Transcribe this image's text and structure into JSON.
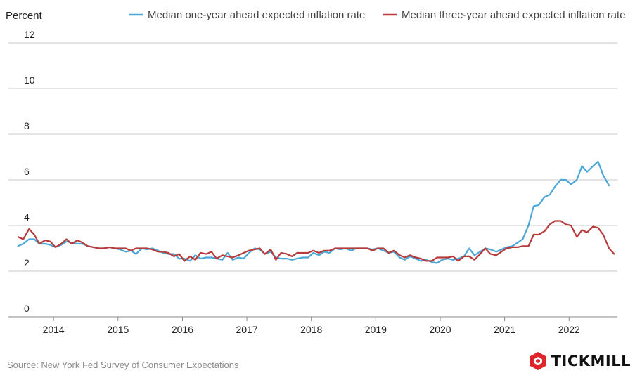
{
  "chart_data": {
    "type": "line",
    "ylabel": "Percent",
    "ylim": [
      0,
      12
    ],
    "yticks": [
      0,
      2,
      4,
      6,
      8,
      10,
      12
    ],
    "xlim": [
      2013.3,
      2022.75
    ],
    "xticks": [
      2014,
      2015,
      2016,
      2017,
      2018,
      2019,
      2020,
      2021,
      2022
    ],
    "xtick_labels": [
      "2014",
      "2015",
      "2016",
      "2017",
      "2018",
      "2019",
      "2020",
      "2021",
      "2022"
    ],
    "grid": "horizontal",
    "legend_position": "top",
    "series": [
      {
        "name": "Median one-year ahead expected inflation rate",
        "color": "#4aa8d8",
        "points": [
          [
            2013.45,
            3.1
          ],
          [
            2013.53,
            3.2
          ],
          [
            2013.62,
            3.4
          ],
          [
            2013.7,
            3.4
          ],
          [
            2013.78,
            3.2
          ],
          [
            2013.87,
            3.2
          ],
          [
            2013.95,
            3.15
          ],
          [
            2014.03,
            3.05
          ],
          [
            2014.12,
            3.15
          ],
          [
            2014.2,
            3.3
          ],
          [
            2014.28,
            3.25
          ],
          [
            2014.37,
            3.2
          ],
          [
            2014.45,
            3.2
          ],
          [
            2014.53,
            3.1
          ],
          [
            2014.62,
            3.05
          ],
          [
            2014.7,
            3.0
          ],
          [
            2014.78,
            3.0
          ],
          [
            2014.87,
            3.05
          ],
          [
            2014.95,
            3.0
          ],
          [
            2015.03,
            2.95
          ],
          [
            2015.12,
            2.85
          ],
          [
            2015.2,
            2.9
          ],
          [
            2015.28,
            2.75
          ],
          [
            2015.37,
            3.0
          ],
          [
            2015.45,
            2.95
          ],
          [
            2015.53,
            3.0
          ],
          [
            2015.62,
            2.9
          ],
          [
            2015.7,
            2.8
          ],
          [
            2015.78,
            2.75
          ],
          [
            2015.87,
            2.75
          ],
          [
            2015.95,
            2.55
          ],
          [
            2016.03,
            2.55
          ],
          [
            2016.12,
            2.45
          ],
          [
            2016.2,
            2.7
          ],
          [
            2016.28,
            2.55
          ],
          [
            2016.37,
            2.6
          ],
          [
            2016.45,
            2.6
          ],
          [
            2016.53,
            2.55
          ],
          [
            2016.62,
            2.5
          ],
          [
            2016.7,
            2.8
          ],
          [
            2016.78,
            2.5
          ],
          [
            2016.87,
            2.6
          ],
          [
            2016.95,
            2.55
          ],
          [
            2017.03,
            2.8
          ],
          [
            2017.12,
            3.0
          ],
          [
            2017.2,
            2.95
          ],
          [
            2017.28,
            2.75
          ],
          [
            2017.37,
            2.85
          ],
          [
            2017.45,
            2.6
          ],
          [
            2017.53,
            2.55
          ],
          [
            2017.62,
            2.55
          ],
          [
            2017.7,
            2.5
          ],
          [
            2017.78,
            2.55
          ],
          [
            2017.87,
            2.6
          ],
          [
            2017.95,
            2.6
          ],
          [
            2018.03,
            2.8
          ],
          [
            2018.12,
            2.7
          ],
          [
            2018.2,
            2.85
          ],
          [
            2018.28,
            2.8
          ],
          [
            2018.37,
            3.0
          ],
          [
            2018.45,
            2.95
          ],
          [
            2018.53,
            3.0
          ],
          [
            2018.62,
            2.9
          ],
          [
            2018.7,
            3.0
          ],
          [
            2018.78,
            3.0
          ],
          [
            2018.87,
            3.0
          ],
          [
            2018.95,
            2.95
          ],
          [
            2019.03,
            3.0
          ],
          [
            2019.12,
            2.9
          ],
          [
            2019.2,
            2.8
          ],
          [
            2019.28,
            2.85
          ],
          [
            2019.37,
            2.6
          ],
          [
            2019.45,
            2.5
          ],
          [
            2019.53,
            2.65
          ],
          [
            2019.62,
            2.55
          ],
          [
            2019.7,
            2.45
          ],
          [
            2019.78,
            2.5
          ],
          [
            2019.87,
            2.4
          ],
          [
            2019.95,
            2.35
          ],
          [
            2020.03,
            2.5
          ],
          [
            2020.12,
            2.55
          ],
          [
            2020.2,
            2.5
          ],
          [
            2020.28,
            2.55
          ],
          [
            2020.37,
            2.65
          ],
          [
            2020.45,
            3.0
          ],
          [
            2020.53,
            2.7
          ],
          [
            2020.62,
            2.85
          ],
          [
            2020.7,
            3.0
          ],
          [
            2020.78,
            2.95
          ],
          [
            2020.87,
            2.85
          ],
          [
            2020.95,
            2.95
          ],
          [
            2021.03,
            3.05
          ],
          [
            2021.12,
            3.1
          ],
          [
            2021.2,
            3.25
          ],
          [
            2021.28,
            3.4
          ],
          [
            2021.37,
            4.0
          ],
          [
            2021.45,
            4.85
          ],
          [
            2021.53,
            4.9
          ],
          [
            2021.62,
            5.25
          ],
          [
            2021.7,
            5.35
          ],
          [
            2021.78,
            5.7
          ],
          [
            2021.87,
            6.0
          ],
          [
            2021.95,
            6.0
          ],
          [
            2022.03,
            5.8
          ],
          [
            2022.12,
            6.0
          ],
          [
            2022.2,
            6.6
          ],
          [
            2022.28,
            6.35
          ],
          [
            2022.37,
            6.6
          ],
          [
            2022.45,
            6.8
          ],
          [
            2022.53,
            6.2
          ],
          [
            2022.62,
            5.75
          ]
        ]
      },
      {
        "name": "Median three-year ahead expected inflation rate",
        "color": "#b83a3a",
        "points": [
          [
            2013.45,
            3.5
          ],
          [
            2013.53,
            3.4
          ],
          [
            2013.62,
            3.85
          ],
          [
            2013.7,
            3.6
          ],
          [
            2013.78,
            3.2
          ],
          [
            2013.87,
            3.35
          ],
          [
            2013.95,
            3.3
          ],
          [
            2014.03,
            3.05
          ],
          [
            2014.12,
            3.2
          ],
          [
            2014.2,
            3.4
          ],
          [
            2014.28,
            3.2
          ],
          [
            2014.37,
            3.35
          ],
          [
            2014.45,
            3.25
          ],
          [
            2014.53,
            3.1
          ],
          [
            2014.62,
            3.05
          ],
          [
            2014.7,
            3.0
          ],
          [
            2014.78,
            3.0
          ],
          [
            2014.87,
            3.05
          ],
          [
            2014.95,
            3.0
          ],
          [
            2015.03,
            3.0
          ],
          [
            2015.12,
            3.0
          ],
          [
            2015.2,
            2.9
          ],
          [
            2015.28,
            3.0
          ],
          [
            2015.37,
            3.0
          ],
          [
            2015.45,
            3.0
          ],
          [
            2015.53,
            2.95
          ],
          [
            2015.62,
            2.85
          ],
          [
            2015.7,
            2.85
          ],
          [
            2015.78,
            2.8
          ],
          [
            2015.87,
            2.65
          ],
          [
            2015.95,
            2.75
          ],
          [
            2016.03,
            2.45
          ],
          [
            2016.12,
            2.65
          ],
          [
            2016.2,
            2.5
          ],
          [
            2016.28,
            2.8
          ],
          [
            2016.37,
            2.75
          ],
          [
            2016.45,
            2.85
          ],
          [
            2016.53,
            2.55
          ],
          [
            2016.62,
            2.7
          ],
          [
            2016.7,
            2.65
          ],
          [
            2016.78,
            2.6
          ],
          [
            2016.87,
            2.7
          ],
          [
            2016.95,
            2.8
          ],
          [
            2017.03,
            2.9
          ],
          [
            2017.12,
            2.95
          ],
          [
            2017.2,
            3.0
          ],
          [
            2017.28,
            2.75
          ],
          [
            2017.37,
            2.95
          ],
          [
            2017.45,
            2.5
          ],
          [
            2017.53,
            2.8
          ],
          [
            2017.62,
            2.75
          ],
          [
            2017.7,
            2.65
          ],
          [
            2017.78,
            2.8
          ],
          [
            2017.87,
            2.8
          ],
          [
            2017.95,
            2.8
          ],
          [
            2018.03,
            2.9
          ],
          [
            2018.12,
            2.8
          ],
          [
            2018.2,
            2.9
          ],
          [
            2018.28,
            2.9
          ],
          [
            2018.37,
            3.0
          ],
          [
            2018.45,
            3.0
          ],
          [
            2018.53,
            3.0
          ],
          [
            2018.62,
            3.0
          ],
          [
            2018.7,
            3.0
          ],
          [
            2018.78,
            3.0
          ],
          [
            2018.87,
            3.0
          ],
          [
            2018.95,
            2.9
          ],
          [
            2019.03,
            3.0
          ],
          [
            2019.12,
            3.0
          ],
          [
            2019.2,
            2.8
          ],
          [
            2019.28,
            2.9
          ],
          [
            2019.37,
            2.7
          ],
          [
            2019.45,
            2.6
          ],
          [
            2019.53,
            2.7
          ],
          [
            2019.62,
            2.6
          ],
          [
            2019.7,
            2.55
          ],
          [
            2019.78,
            2.45
          ],
          [
            2019.87,
            2.45
          ],
          [
            2019.95,
            2.6
          ],
          [
            2020.03,
            2.6
          ],
          [
            2020.12,
            2.6
          ],
          [
            2020.2,
            2.65
          ],
          [
            2020.28,
            2.45
          ],
          [
            2020.37,
            2.65
          ],
          [
            2020.45,
            2.65
          ],
          [
            2020.53,
            2.5
          ],
          [
            2020.62,
            2.75
          ],
          [
            2020.7,
            3.0
          ],
          [
            2020.78,
            2.75
          ],
          [
            2020.87,
            2.7
          ],
          [
            2020.95,
            2.85
          ],
          [
            2021.03,
            3.0
          ],
          [
            2021.12,
            3.05
          ],
          [
            2021.2,
            3.05
          ],
          [
            2021.28,
            3.1
          ],
          [
            2021.37,
            3.1
          ],
          [
            2021.45,
            3.6
          ],
          [
            2021.53,
            3.6
          ],
          [
            2021.62,
            3.75
          ],
          [
            2021.7,
            4.05
          ],
          [
            2021.78,
            4.2
          ],
          [
            2021.87,
            4.2
          ],
          [
            2021.95,
            4.05
          ],
          [
            2022.03,
            4.0
          ],
          [
            2022.12,
            3.5
          ],
          [
            2022.2,
            3.8
          ],
          [
            2022.28,
            3.7
          ],
          [
            2022.37,
            3.95
          ],
          [
            2022.45,
            3.9
          ],
          [
            2022.53,
            3.6
          ],
          [
            2022.62,
            3.0
          ],
          [
            2022.7,
            2.75
          ]
        ]
      }
    ]
  },
  "source_text": "Source: New York Fed Survey of Consumer Expectations",
  "brand": {
    "name": "TICKMILL",
    "logo_icon": "tickmill-hexagon-logo",
    "logo_color": "#e0262c"
  }
}
